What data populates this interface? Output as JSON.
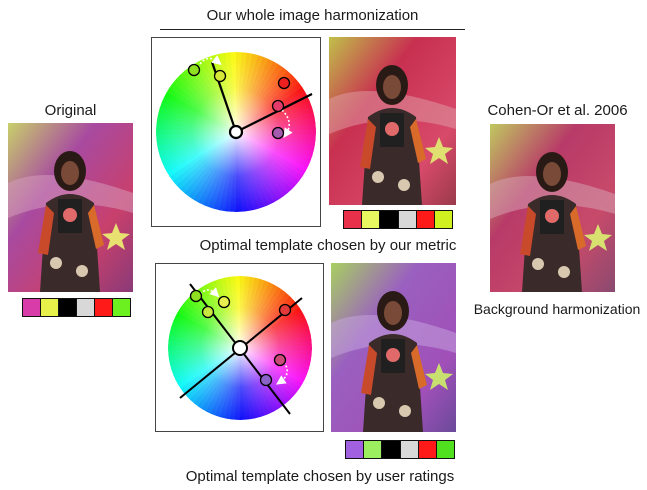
{
  "captions": {
    "whole_image": "Our whole image harmonization",
    "original": "Original",
    "cohen_or": "Cohen-Or et al. 2006",
    "our_metric": "Optimal template chosen by our metric",
    "background": "Background harmonization",
    "user_ratings": "Optimal template chosen by user ratings"
  },
  "photos": [
    {
      "id": "original",
      "tint": "#c0407a",
      "accent": "#e0d060"
    },
    {
      "id": "metric",
      "tint": "#c02848",
      "accent": "#a8c040"
    },
    {
      "id": "cohen",
      "tint": "#b83860",
      "accent": "#b0c048"
    },
    {
      "id": "ratings",
      "tint": "#9a58b8",
      "accent": "#a8d048"
    }
  ],
  "palettes": {
    "original": [
      "#d83ca8",
      "#e8f04a",
      "#000000",
      "#d8d8d8",
      "#ff1a1a",
      "#6cf020"
    ],
    "metric": [
      "#e8304a",
      "#e8f860",
      "#000000",
      "#d8d8d8",
      "#ff1a1a",
      "#d0f020"
    ],
    "ratings": [
      "#a060e0",
      "#9cf060",
      "#000000",
      "#d8d8d8",
      "#ff1a1a",
      "#50e020"
    ]
  },
  "wheels": {
    "top": {
      "dots": [
        {
          "color": "#8fe020"
        },
        {
          "color": "#d6e838"
        },
        {
          "color": "#ee1f1f"
        },
        {
          "color": "#e43a6a"
        },
        {
          "color": "#a45aae"
        }
      ]
    },
    "bottom": {
      "dots": [
        {
          "color": "#8fe020"
        },
        {
          "color": "#c8e840"
        },
        {
          "color": "#e8f050"
        },
        {
          "color": "#e23a3a"
        },
        {
          "color": "#cc4a7a"
        },
        {
          "color": "#8a62c8"
        }
      ]
    }
  }
}
